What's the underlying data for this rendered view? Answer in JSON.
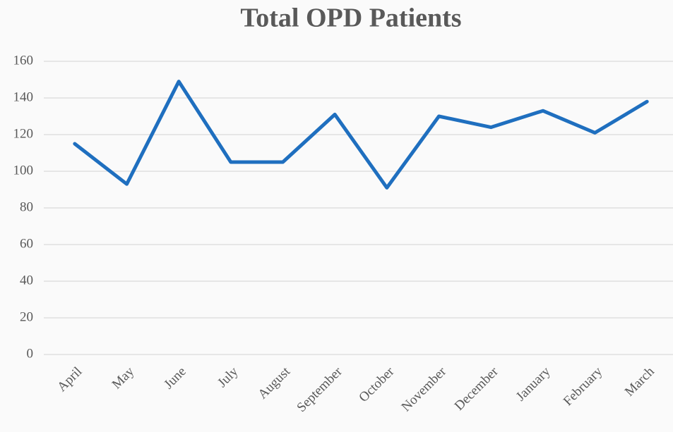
{
  "chart_data": {
    "type": "line",
    "title": "Total OPD Patients",
    "categories": [
      "April",
      "May",
      "June",
      "July",
      "August",
      "September",
      "October",
      "November",
      "December",
      "January",
      "February",
      "March"
    ],
    "series": [
      {
        "name": "Total OPD Patients",
        "color": "#1f6fbf",
        "values": [
          115,
          93,
          149,
          105,
          105,
          131,
          91,
          130,
          124,
          133,
          121,
          138
        ]
      }
    ],
    "ylim": [
      0,
      160
    ],
    "yticks": [
      0,
      20,
      40,
      60,
      80,
      100,
      120,
      140,
      160
    ],
    "grid": true
  }
}
